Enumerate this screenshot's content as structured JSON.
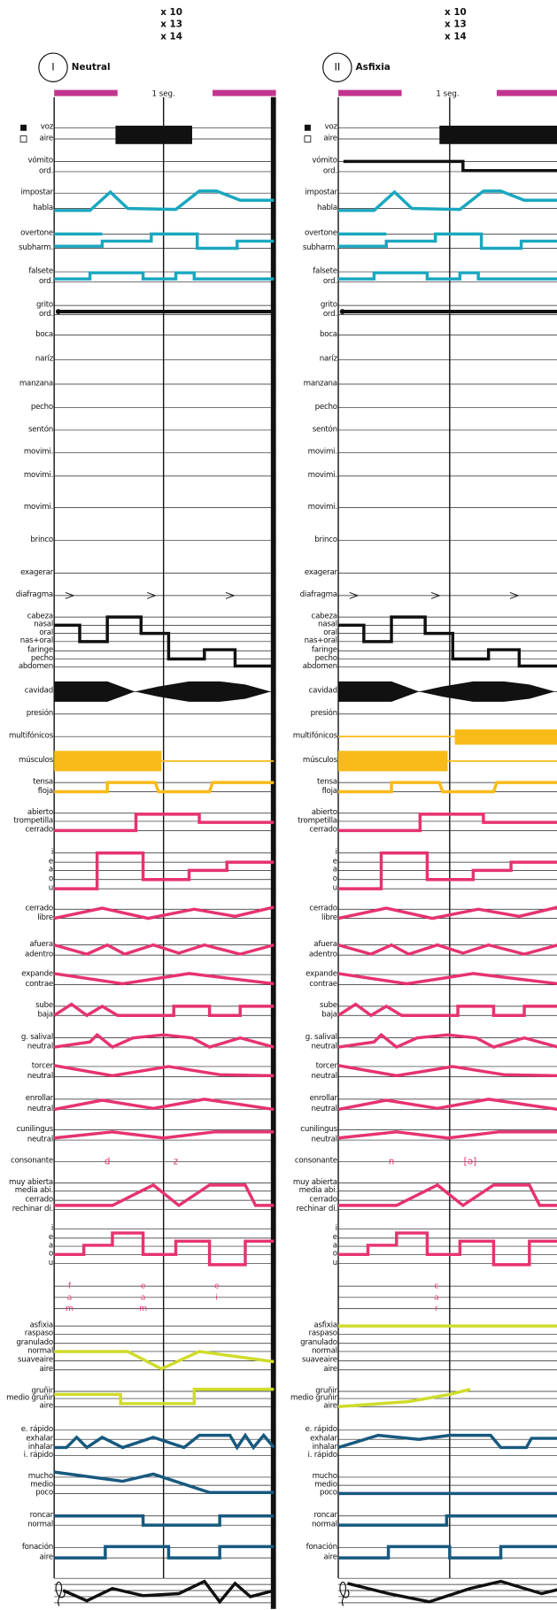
{
  "header": {
    "counts": [
      "x 10",
      "x 13",
      "x 14"
    ]
  },
  "columns": [
    {
      "numeral": "I",
      "title": "Neutral",
      "scale": "1 seg.",
      "consonants": [
        "d",
        "z"
      ],
      "syllables": [
        [
          "f",
          "a",
          "m"
        ],
        [
          "e",
          "a",
          "m"
        ],
        [
          "e",
          "i"
        ]
      ]
    },
    {
      "numeral": "II",
      "title": "Asfixia",
      "scale": "1 seg.",
      "consonants": [
        "n",
        "[ə]"
      ],
      "syllables": [
        [
          "c",
          "a",
          "r"
        ]
      ]
    }
  ],
  "rows": [
    [
      "voz",
      "aire"
    ],
    [
      "vómito",
      "ord."
    ],
    [
      "impostar",
      "habla"
    ],
    [
      "overtone",
      "subharm."
    ],
    [
      "falsete",
      "ord."
    ],
    [
      "grito",
      "ord."
    ],
    [
      "boca"
    ],
    [
      "naríz"
    ],
    [
      "manzana"
    ],
    [
      "pecho"
    ],
    [
      "sentón"
    ],
    [
      "movimi."
    ],
    [
      "movimi."
    ],
    [
      "movimi."
    ],
    [
      "brinco"
    ],
    [
      "exagerar"
    ],
    [
      "diafragma"
    ],
    [
      "cabeza",
      "nasal",
      "oral",
      "nas+oral",
      "faringe",
      "pecho",
      "abdomen"
    ],
    [
      "cavidad"
    ],
    [
      "presión"
    ],
    [
      "multifónicos"
    ],
    [
      "músculos"
    ],
    [
      "tensa",
      "floja"
    ],
    [
      "abierto",
      "trompetilla",
      "cerrado"
    ],
    [
      "i",
      "e",
      "a",
      "o",
      "u"
    ],
    [
      "cerrado",
      "libre"
    ],
    [
      "afuera",
      "adentro"
    ],
    [
      "expande",
      "contrae"
    ],
    [
      "sube",
      "baja"
    ],
    [
      "g. salival",
      "neutral"
    ],
    [
      "torcer",
      "neutral"
    ],
    [
      "enrollar",
      "neutral"
    ],
    [
      "cunilingus",
      "neutral"
    ],
    [
      "consonante"
    ],
    [
      "muy abierta",
      "media abi.",
      "cerrado",
      "rechinar di."
    ],
    [
      "i",
      "e",
      "a",
      "o",
      "u"
    ],
    [
      "asfixia",
      "raspaso",
      "granulado",
      "normal",
      "suaveaire",
      "aire"
    ],
    [
      "gruñir",
      "medio gruñir",
      "aire"
    ],
    [
      "e. rápido",
      "exhalar",
      "inhalar",
      "i. rápido"
    ],
    [
      "mucho",
      "medio",
      "poco"
    ],
    [
      "roncar",
      "normal"
    ],
    [
      "fonación",
      "aire"
    ]
  ]
}
